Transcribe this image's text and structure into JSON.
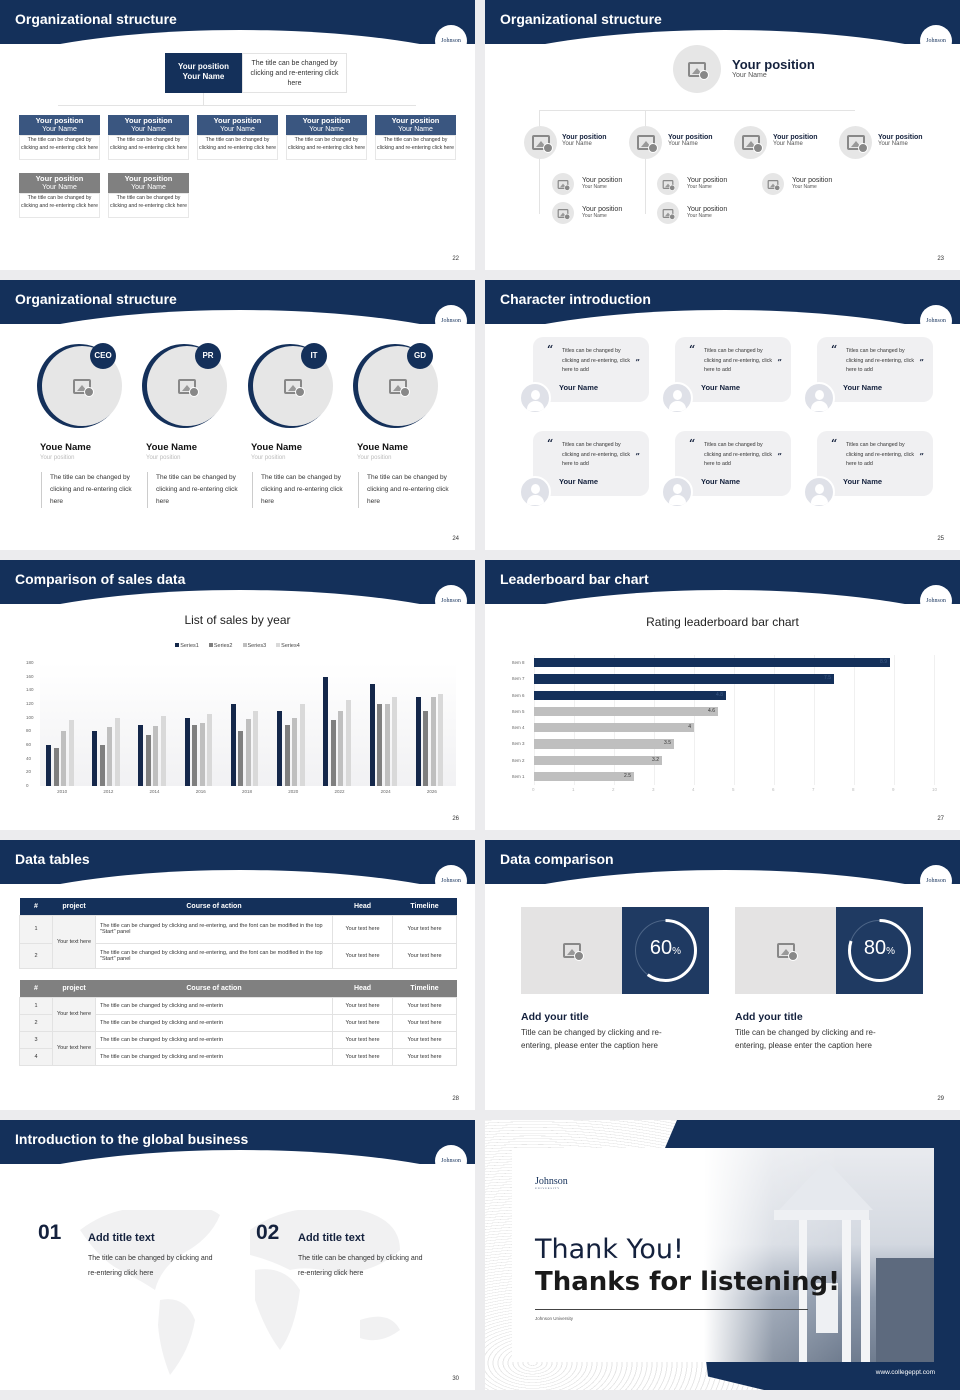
{
  "brand": {
    "logo": "Johnson",
    "navy": "#14305a",
    "grey": "#808080"
  },
  "slides": {
    "s22": {
      "title": "Organizational structure",
      "page": "22",
      "top": {
        "position": "Your position",
        "name": "Your Name",
        "desc": "The title can be changed by clicking and re-entering click here"
      },
      "row1": [
        {
          "position": "Your position",
          "name": "Your Name",
          "desc": "The title can be changed by clicking and re-entering click here"
        },
        {
          "position": "Your position",
          "name": "Your Name",
          "desc": "The title can be changed by clicking and re-entering click here"
        },
        {
          "position": "Your position",
          "name": "Your Name",
          "desc": "The title can be changed by clicking and re-entering click here"
        },
        {
          "position": "Your position",
          "name": "Your Name",
          "desc": "The title can be changed by clicking and re-entering click here"
        },
        {
          "position": "Your position",
          "name": "Your Name",
          "desc": "The title can be changed by clicking and re-entering click here"
        }
      ],
      "row2": [
        {
          "position": "Your position",
          "name": "Your Name",
          "desc": "The title can be changed by clicking and re-entering click here"
        },
        {
          "position": "Your position",
          "name": "Your Name",
          "desc": "The title can be changed by clicking and re-entering click here"
        }
      ]
    },
    "s23": {
      "title": "Organizational structure",
      "page": "23",
      "top": {
        "position": "Your position",
        "name": "Your Name"
      },
      "level2": [
        {
          "position": "Your position",
          "name": "Your Name"
        },
        {
          "position": "Your position",
          "name": "Your Name"
        },
        {
          "position": "Your position",
          "name": "Your Name"
        },
        {
          "position": "Your position",
          "name": "Your Name"
        }
      ],
      "level3": [
        {
          "position": "Your position",
          "name": "Your Name"
        },
        {
          "position": "Your position",
          "name": "Your Name"
        },
        {
          "position": "Your position",
          "name": "Your Name"
        },
        {
          "position": "Your position",
          "name": "Your Name"
        },
        {
          "position": "Your position",
          "name": "Your Name"
        }
      ]
    },
    "s24": {
      "title": "Organizational structure",
      "page": "24",
      "people": [
        {
          "tag": "CEO",
          "name": "Youe Name",
          "position": "Your position",
          "desc": "The title can be changed by clicking and re-entering click here"
        },
        {
          "tag": "PR",
          "name": "Youe Name",
          "position": "Your position",
          "desc": "The title can be changed by clicking and re-entering click here"
        },
        {
          "tag": "IT",
          "name": "Youe Name",
          "position": "Your position",
          "desc": "The title can be changed by clicking and re-entering click here"
        },
        {
          "tag": "GD",
          "name": "Youe Name",
          "position": "Your position",
          "desc": "The title can be changed by clicking and re-entering click here"
        }
      ]
    },
    "s25": {
      "title": "Character introduction",
      "page": "25",
      "open_quote": "“",
      "close_quote": "”",
      "cards": [
        {
          "text": "Titles can be changed by clicking and re-entering, click here to add",
          "name": "Your Name"
        },
        {
          "text": "Titles can be changed by clicking and re-entering, click here to add",
          "name": "Your Name"
        },
        {
          "text": "Titles can be changed by clicking and re-entering, click here to add",
          "name": "Your Name"
        },
        {
          "text": "Titles can be changed by clicking and re-entering, click here to add",
          "name": "Your Name"
        },
        {
          "text": "Titles can be changed by clicking and re-entering, click here to add",
          "name": "Your Name"
        },
        {
          "text": "Titles can be changed by clicking and re-entering, click here to add",
          "name": "Your Name"
        }
      ]
    },
    "s26": {
      "title": "Comparison of sales data",
      "page": "26"
    },
    "s27": {
      "title": "Leaderboard bar chart",
      "page": "27"
    },
    "s28": {
      "title": "Data tables",
      "page": "28",
      "headers": [
        "#",
        "project",
        "Course of action",
        "Head",
        "Timeline"
      ],
      "table1": {
        "project": "Your text here",
        "rows": [
          {
            "num": "1",
            "action": "The title can be changed by clicking and re-entering, and the font can be modified in the top \"Start\" panel",
            "head": "Your text here",
            "timeline": "Your text here"
          },
          {
            "num": "2",
            "action": "The title can be changed by clicking and re-entering, and the font can be modified in the top \"Start\" panel",
            "head": "Your text here",
            "timeline": "Your text here"
          }
        ]
      },
      "table2": {
        "project_a": "Your text here",
        "project_b": "Your text here",
        "rows": [
          {
            "num": "1",
            "action": "The title can be changed by clicking and re-enterin",
            "head": "Your text here",
            "timeline": "Your text here"
          },
          {
            "num": "2",
            "action": "The title can be changed by clicking and re-enterin",
            "head": "Your text here",
            "timeline": "Your text here"
          },
          {
            "num": "3",
            "action": "The title can be changed by clicking and re-enterin",
            "head": "Your text here",
            "timeline": "Your text here"
          },
          {
            "num": "4",
            "action": "The title can be changed by clicking and re-enterin",
            "head": "Your text here",
            "timeline": "Your text here"
          }
        ]
      }
    },
    "s29": {
      "title": "Data comparison",
      "page": "29",
      "items": [
        {
          "value": "60",
          "unit": "%",
          "percent": 60,
          "title": "Add your title",
          "desc": "Title can be changed by clicking and re-entering, please enter the caption here"
        },
        {
          "value": "80",
          "unit": "%",
          "percent": 80,
          "title": "Add your title",
          "desc": "Title can be changed by clicking and re-entering, please enter the caption here"
        }
      ]
    },
    "s30": {
      "title": "Introduction to the global business",
      "page": "30",
      "items": [
        {
          "num": "01",
          "title": "Add title text",
          "desc": "The title can be changed by clicking and re-entering click here"
        },
        {
          "num": "02",
          "title": "Add title text",
          "desc": "The title can be changed by clicking and re-entering click here"
        }
      ]
    },
    "s31": {
      "logo": "Johnson",
      "logo_sub": "UNIVERSITY",
      "line1": "Thank You!",
      "line2": "Thanks for listening!",
      "org": "Johnson University",
      "url": "www.collegeppt.com"
    }
  },
  "chart_data": [
    {
      "type": "bar",
      "title": "List of sales by year",
      "categories": [
        "2010",
        "2012",
        "2014",
        "2016",
        "2018",
        "2020",
        "2022",
        "2024",
        "2026"
      ],
      "series": [
        {
          "name": "Series1",
          "color": "#14274a",
          "values": [
            60,
            80,
            90,
            100,
            120,
            110,
            160,
            150,
            130
          ]
        },
        {
          "name": "Series2",
          "color": "#7f7f7f",
          "values": [
            55,
            60,
            75,
            90,
            80,
            90,
            96,
            120,
            110
          ]
        },
        {
          "name": "Series3",
          "color": "#bfbfbf",
          "values": [
            80,
            86,
            88,
            92,
            98,
            100,
            110,
            120,
            130
          ]
        },
        {
          "name": "Series4",
          "color": "#d9d9d9",
          "values": [
            96,
            99,
            102,
            105,
            110,
            120,
            126,
            130,
            135
          ]
        }
      ],
      "yticks": [
        0,
        20,
        40,
        60,
        80,
        100,
        120,
        140,
        160,
        180
      ],
      "ylim": [
        0,
        180
      ],
      "legend_position": "top",
      "grid": false
    },
    {
      "type": "bar",
      "orientation": "horizontal",
      "title": "Rating leaderboard bar chart",
      "categories": [
        "Item 8",
        "Item 7",
        "Item 6",
        "Item 5",
        "Item 4",
        "Item 3",
        "Item 2",
        "Item 1"
      ],
      "values": [
        8.9,
        7.5,
        4.8,
        4.6,
        4,
        3.5,
        3.2,
        2.5
      ],
      "labels": [
        "8.9",
        "7.5",
        "4.8",
        "4.6",
        "4",
        "3.5",
        "3.2",
        "2.5"
      ],
      "highlight_color": "#14305a",
      "base_color": "#bfbfbf",
      "highlighted": [
        "Item 8",
        "Item 7",
        "Item 6"
      ],
      "xticks": [
        0,
        1,
        2,
        3,
        4,
        5,
        6,
        7,
        8,
        9,
        10
      ],
      "xlim": [
        0,
        10
      ],
      "grid": true
    }
  ]
}
